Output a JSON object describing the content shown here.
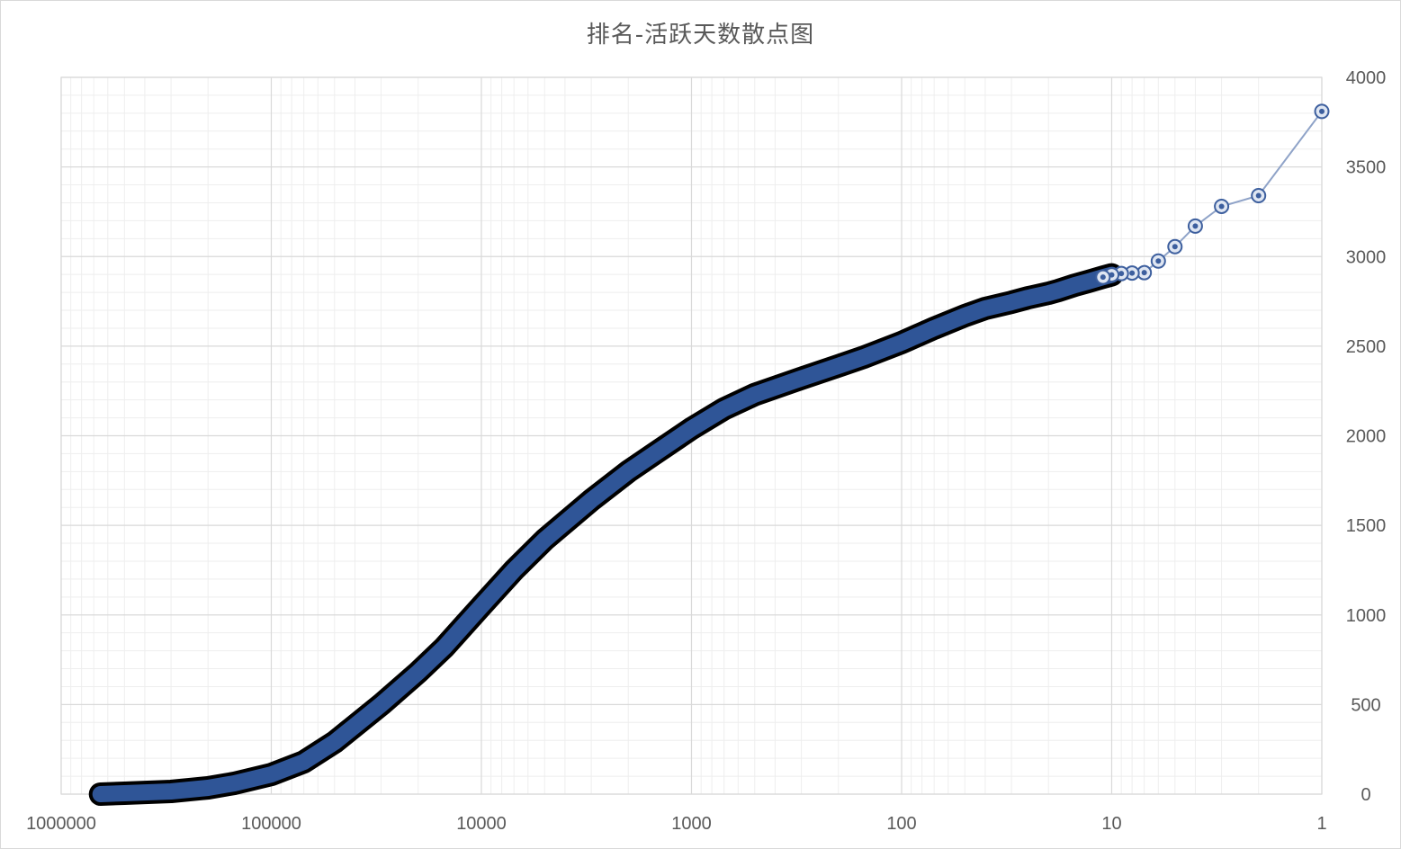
{
  "chart_data": {
    "type": "scatter",
    "title": "排名-活跃天数散点图",
    "xlabel": "",
    "ylabel": "",
    "x_scale": "log",
    "x_reversed": true,
    "xlim": [
      1000000,
      1
    ],
    "ylim": [
      0,
      4000
    ],
    "x_ticks": [
      "1000000",
      "100000",
      "10000",
      "1000",
      "100",
      "10",
      "1"
    ],
    "y_ticks": [
      "4000",
      "3500",
      "3000",
      "2500",
      "2000",
      "1500",
      "1000",
      "500",
      "0"
    ],
    "y_axis_position": "right",
    "grid": {
      "major": true,
      "minor": true
    },
    "legend": "none",
    "colors": {
      "marker_fill": "#2F5597",
      "marker_edge": "#000000",
      "line": "#8FA3C8",
      "grid_major": "#d9d9d9",
      "grid_minor": "#eeeeee"
    },
    "x_min": 650000,
    "series": [
      {
        "points": [
          [
            1,
            3810
          ],
          [
            2,
            3340
          ],
          [
            3,
            3280
          ],
          [
            4,
            3170
          ],
          [
            5,
            3055
          ],
          [
            6,
            2975
          ],
          [
            7,
            2910
          ],
          [
            8,
            2908
          ],
          [
            9,
            2905
          ],
          [
            10,
            2898
          ],
          [
            11,
            2885
          ],
          [
            13,
            2860
          ],
          [
            15,
            2840
          ],
          [
            18,
            2810
          ],
          [
            20,
            2795
          ],
          [
            25,
            2770
          ],
          [
            30,
            2745
          ],
          [
            40,
            2710
          ],
          [
            50,
            2670
          ],
          [
            70,
            2600
          ],
          [
            100,
            2520
          ],
          [
            150,
            2440
          ],
          [
            200,
            2390
          ],
          [
            300,
            2320
          ],
          [
            500,
            2230
          ],
          [
            700,
            2150
          ],
          [
            1000,
            2040
          ],
          [
            1500,
            1900
          ],
          [
            2000,
            1800
          ],
          [
            3000,
            1640
          ],
          [
            5000,
            1420
          ],
          [
            7000,
            1250
          ],
          [
            10000,
            1050
          ],
          [
            15000,
            820
          ],
          [
            20000,
            680
          ],
          [
            30000,
            500
          ],
          [
            50000,
            290
          ],
          [
            70000,
            180
          ],
          [
            100000,
            110
          ],
          [
            150000,
            60
          ],
          [
            200000,
            35
          ],
          [
            300000,
            15
          ],
          [
            500000,
            5
          ],
          [
            650000,
            0
          ]
        ]
      }
    ]
  }
}
